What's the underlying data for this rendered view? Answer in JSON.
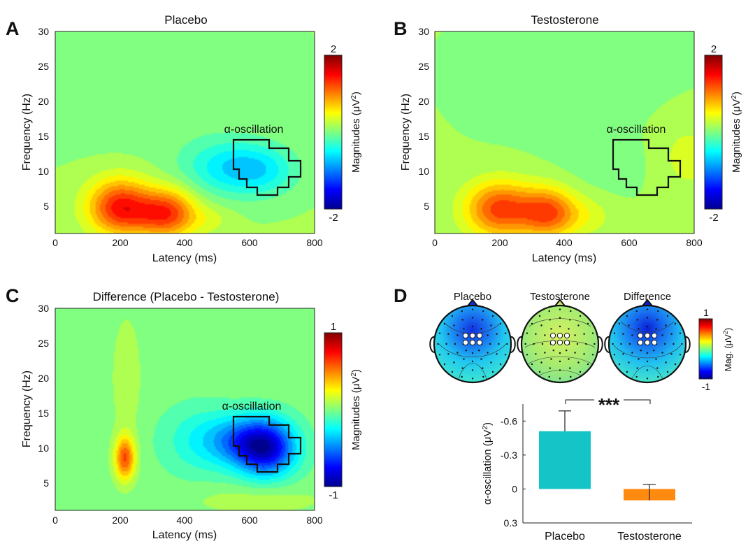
{
  "palette": [
    "#00008f",
    "#0000ff",
    "#0080ff",
    "#00ffff",
    "#80ff80",
    "#ffff00",
    "#ff8000",
    "#ff0000",
    "#800000"
  ],
  "panels": [
    {
      "letter": "A",
      "title": "Placebo",
      "xlabel": "Latency (ms)",
      "ylabel": "Frequency (Hz)",
      "xticks": [
        "0",
        "200",
        "400",
        "600",
        "800"
      ],
      "yticks": [
        "5",
        "10",
        "15",
        "20",
        "25",
        "30"
      ],
      "region_label": "α-oscillation",
      "colorbar": {
        "max_label": "2",
        "min_label": "-2",
        "label_prefix": "Magnitudes (μV",
        "label_sup": "2",
        "label_suffix": ")"
      }
    },
    {
      "letter": "B",
      "title": "Testosterone",
      "xlabel": "Latency (ms)",
      "ylabel": "Frequency (Hz)",
      "xticks": [
        "0",
        "200",
        "400",
        "600",
        "800"
      ],
      "yticks": [
        "5",
        "10",
        "15",
        "20",
        "25",
        "30"
      ],
      "region_label": "α-oscillation",
      "colorbar": {
        "max_label": "2",
        "min_label": "-2",
        "label_prefix": "Magnitudes (μV",
        "label_sup": "2",
        "label_suffix": ")"
      }
    },
    {
      "letter": "C",
      "title": "Difference (Placebo - Testosterone)",
      "xlabel": "Latency (ms)",
      "ylabel": "Frequency (Hz)",
      "xticks": [
        "0",
        "200",
        "400",
        "600",
        "800"
      ],
      "yticks": [
        "5",
        "10",
        "15",
        "20",
        "25",
        "30"
      ],
      "region_label": "α-oscillation",
      "colorbar": {
        "max_label": "1",
        "min_label": "-1",
        "label_prefix": "Magnitudes (μV",
        "label_sup": "2",
        "label_suffix": ")"
      }
    }
  ],
  "panel_d": {
    "letter": "D",
    "topo_titles": [
      "Placebo",
      "Testosterone",
      "Difference"
    ],
    "colorbar": {
      "max_label": "1",
      "min_label": "-1",
      "label_prefix": "Mag. (μV",
      "label_sup": "2",
      "label_suffix": ")"
    },
    "significance": "***"
  },
  "chart_data": [
    {
      "type": "heatmap",
      "title": "Placebo",
      "xlabel": "Latency (ms)",
      "ylabel": "Frequency (Hz)",
      "xlim": [
        0,
        800
      ],
      "ylim": [
        1,
        30
      ],
      "color_range": [
        -2,
        2
      ],
      "colorbar_label": "Magnitudes (μV2)",
      "baseline": 0.1,
      "blobs": [
        {
          "x": 200,
          "y": 5,
          "sx": 70,
          "sy": 2.8,
          "a": 1.2
        },
        {
          "x": 350,
          "y": 4,
          "sx": 60,
          "sy": 2.5,
          "a": 1.0
        },
        {
          "x": 270,
          "y": 3.5,
          "sx": 90,
          "sy": 2.0,
          "a": 0.3
        },
        {
          "x": 480,
          "y": 3,
          "sx": 50,
          "sy": 1.5,
          "a": 0.2
        },
        {
          "x": 530,
          "y": 10.5,
          "sx": 100,
          "sy": 2.8,
          "a": -0.6
        },
        {
          "x": 640,
          "y": 10,
          "sx": 80,
          "sy": 2.5,
          "a": -0.45
        },
        {
          "x": 300,
          "y": 22,
          "sx": 250,
          "sy": 6,
          "a": -0.15
        }
      ],
      "region_label": "α-oscillation",
      "region_bounds": {
        "latency_ms": [
          540,
          760
        ],
        "frequency_hz": [
          6.5,
          14.5
        ]
      }
    },
    {
      "type": "heatmap",
      "title": "Testosterone",
      "xlabel": "Latency (ms)",
      "ylabel": "Frequency (Hz)",
      "xlim": [
        0,
        800
      ],
      "ylim": [
        1,
        30
      ],
      "color_range": [
        -2,
        2
      ],
      "colorbar_label": "Magnitudes (μV2)",
      "baseline": 0.1,
      "blobs": [
        {
          "x": 200,
          "y": 4.5,
          "sx": 75,
          "sy": 2.8,
          "a": 1.15
        },
        {
          "x": 350,
          "y": 4,
          "sx": 60,
          "sy": 2.5,
          "a": 1.05
        },
        {
          "x": 470,
          "y": 3.5,
          "sx": 60,
          "sy": 2.0,
          "a": 0.25
        },
        {
          "x": 780,
          "y": 12,
          "sx": 80,
          "sy": 4,
          "a": 0.25
        },
        {
          "x": 550,
          "y": 11,
          "sx": 110,
          "sy": 3,
          "a": -0.1
        },
        {
          "x": 430,
          "y": 24,
          "sx": 200,
          "sy": 6,
          "a": -0.12
        }
      ],
      "region_label": "α-oscillation",
      "region_bounds": {
        "latency_ms": [
          540,
          760
        ],
        "frequency_hz": [
          6.5,
          14.5
        ]
      }
    },
    {
      "type": "heatmap",
      "title": "Difference (Placebo - Testosterone)",
      "xlabel": "Latency (ms)",
      "ylabel": "Frequency (Hz)",
      "xlim": [
        0,
        800
      ],
      "ylim": [
        1,
        30
      ],
      "color_range": [
        -1,
        1
      ],
      "colorbar_label": "Magnitudes (μV2)",
      "baseline": 0.0,
      "blobs": [
        {
          "x": 215,
          "y": 8.5,
          "sx": 22,
          "sy": 2.2,
          "a": 0.6
        },
        {
          "x": 650,
          "y": 10,
          "sx": 65,
          "sy": 2.8,
          "a": -0.85
        },
        {
          "x": 560,
          "y": 11,
          "sx": 70,
          "sy": 2.5,
          "a": -0.35
        },
        {
          "x": 440,
          "y": 11,
          "sx": 80,
          "sy": 3.5,
          "a": -0.2
        },
        {
          "x": 220,
          "y": 20,
          "sx": 30,
          "sy": 6,
          "a": 0.12
        },
        {
          "x": 620,
          "y": 2.5,
          "sx": 150,
          "sy": 1.5,
          "a": 0.1
        }
      ],
      "region_label": "α-oscillation",
      "region_bounds": {
        "latency_ms": [
          540,
          760
        ],
        "frequency_hz": [
          6.5,
          14.5
        ]
      }
    },
    {
      "type": "topomap",
      "maps": [
        {
          "title": "Placebo",
          "center_value": -0.85,
          "edge_value": -0.25
        },
        {
          "title": "Testosterone",
          "center_value": 0.15,
          "edge_value": 0.05
        },
        {
          "title": "Difference",
          "center_value": -0.85,
          "edge_value": -0.25
        }
      ],
      "color_range": [
        -1,
        1
      ],
      "colorbar_label": "Mag. (μV2)"
    },
    {
      "type": "bar",
      "ylabel": "α-oscillation (μV2)",
      "categories": [
        "Placebo",
        "Testosterone"
      ],
      "values": [
        -0.51,
        0.1
      ],
      "errors": [
        0.18,
        0.14
      ],
      "colors": [
        "#14c4c6",
        "#ff8a10"
      ],
      "y_reversed": true,
      "ylim": [
        0.3,
        -0.75
      ],
      "yticks": [
        "-0.6",
        "-0.3",
        "0",
        "0.3"
      ],
      "significance": "***"
    }
  ]
}
